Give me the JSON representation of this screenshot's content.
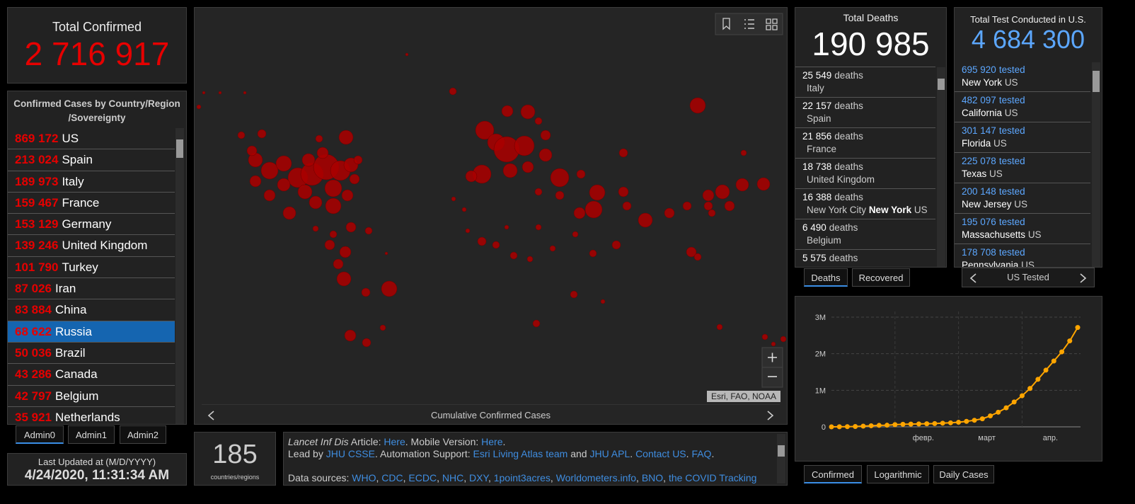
{
  "total_confirmed": {
    "title": "Total Confirmed",
    "value": "2 716 917"
  },
  "country_list": {
    "title_lines": [
      "Confirmed Cases by Country/Region",
      "/Sovereignty"
    ],
    "rows": [
      {
        "count": "869 172",
        "name": "US"
      },
      {
        "count": "213 024",
        "name": "Spain"
      },
      {
        "count": "189 973",
        "name": "Italy"
      },
      {
        "count": "159 467",
        "name": "France"
      },
      {
        "count": "153 129",
        "name": "Germany"
      },
      {
        "count": "139 246",
        "name": "United Kingdom"
      },
      {
        "count": "101 790",
        "name": "Turkey"
      },
      {
        "count": "87 026",
        "name": "Iran"
      },
      {
        "count": "83 884",
        "name": "China"
      },
      {
        "count": "68 622",
        "name": "Russia",
        "selected": true
      },
      {
        "count": "50 036",
        "name": "Brazil"
      },
      {
        "count": "43 286",
        "name": "Canada"
      },
      {
        "count": "42 797",
        "name": "Belgium"
      },
      {
        "count": "35 921",
        "name": "Netherlands"
      }
    ]
  },
  "admin_tabs": [
    "Admin0",
    "Admin1",
    "Admin2"
  ],
  "last_updated": {
    "label": "Last Updated at (M/D/YYYY)",
    "value": "4/24/2020, 11:31:34 AM"
  },
  "map": {
    "caption": "Cumulative Confirmed Cases",
    "attribution": "Esri, FAO, NOAA"
  },
  "countries_count": {
    "value": "185",
    "label": "countries/regions"
  },
  "info": {
    "lines": [
      [
        {
          "text": "Lancet Inf Dis",
          "italic": true
        },
        {
          "text": " Article: "
        },
        {
          "text": "Here",
          "link": true
        },
        {
          "text": ". Mobile Version: "
        },
        {
          "text": "Here",
          "link": true
        },
        {
          "text": "."
        }
      ],
      [
        {
          "text": "Lead by "
        },
        {
          "text": "JHU CSSE",
          "link": true
        },
        {
          "text": ". Automation Support: "
        },
        {
          "text": "Esri Living Atlas team",
          "link": true
        },
        {
          "text": " and "
        },
        {
          "text": "JHU APL",
          "link": true
        },
        {
          "text": ". "
        },
        {
          "text": "Contact US",
          "link": true
        },
        {
          "text": ". "
        },
        {
          "text": "FAQ",
          "link": true
        },
        {
          "text": "."
        }
      ],
      [
        {
          "text": "Data sources: "
        },
        {
          "text": "WHO",
          "link": true
        },
        {
          "text": ", "
        },
        {
          "text": "CDC",
          "link": true
        },
        {
          "text": ", "
        },
        {
          "text": "ECDC",
          "link": true
        },
        {
          "text": ", "
        },
        {
          "text": "NHC",
          "link": true
        },
        {
          "text": ", "
        },
        {
          "text": "DXY",
          "link": true
        },
        {
          "text": ", "
        },
        {
          "text": "1point3acres",
          "link": true
        },
        {
          "text": ", "
        },
        {
          "text": "Worldometers.info",
          "link": true
        },
        {
          "text": ", "
        },
        {
          "text": "BNO",
          "link": true
        },
        {
          "text": ", "
        },
        {
          "text": "the COVID Tracking",
          "link": true
        }
      ]
    ]
  },
  "deaths": {
    "title": "Total Deaths",
    "value": "190 985",
    "rows": [
      {
        "count": "25 549",
        "unit": "deaths",
        "place": "Italy"
      },
      {
        "count": "22 157",
        "unit": "deaths",
        "place": "Spain"
      },
      {
        "count": "21 856",
        "unit": "deaths",
        "place": "France"
      },
      {
        "count": "18 738",
        "unit": "deaths",
        "place": "United Kingdom"
      },
      {
        "count": "16 388",
        "unit": "deaths",
        "place": "New York City",
        "region": "New York",
        "country": "US"
      },
      {
        "count": "6 490",
        "unit": "deaths",
        "place": "Belgium"
      },
      {
        "count": "5 575",
        "unit": "deaths"
      }
    ],
    "tabs": [
      "Deaths",
      "Recovered"
    ]
  },
  "tests": {
    "title": "Total Test Conducted in U.S.",
    "value": "4 684 300",
    "rows": [
      {
        "count": "695 920",
        "unit": "tested",
        "state": "New York",
        "country": "US"
      },
      {
        "count": "482 097",
        "unit": "tested",
        "state": "California",
        "country": "US"
      },
      {
        "count": "301 147",
        "unit": "tested",
        "state": "Florida",
        "country": "US"
      },
      {
        "count": "225 078",
        "unit": "tested",
        "state": "Texas",
        "country": "US"
      },
      {
        "count": "200 148",
        "unit": "tested",
        "state": "New Jersey",
        "country": "US"
      },
      {
        "count": "195 076",
        "unit": "tested",
        "state": "Massachusetts",
        "country": "US"
      },
      {
        "count": "178 708",
        "unit": "tested",
        "state": "Pennsylvania",
        "country": "US"
      }
    ],
    "footer": "US Tested"
  },
  "chart_data": {
    "type": "line",
    "categories": [
      null,
      null,
      null,
      null,
      null,
      null,
      null,
      null,
      "февр.",
      null,
      null,
      null,
      null,
      null,
      null,
      null,
      "март",
      null,
      null,
      null,
      null,
      null,
      null,
      null,
      "апр.",
      null,
      null,
      null,
      null,
      null,
      null,
      null
    ],
    "values": [
      555,
      2000,
      6000,
      10000,
      20000,
      30000,
      40000,
      45000,
      60000,
      70000,
      75000,
      80000,
      85000,
      90000,
      100000,
      110000,
      125000,
      150000,
      180000,
      220000,
      300000,
      400000,
      520000,
      680000,
      850000,
      1050000,
      1300000,
      1550000,
      1800000,
      2050000,
      2350000,
      2716917
    ],
    "color": "#ffa500",
    "ylim": [
      0,
      3000000
    ],
    "yticks": [
      0,
      {
        "value": 1000000,
        "label": "1M"
      },
      {
        "value": 2000000,
        "label": "2M"
      },
      {
        "value": 3000000,
        "label": "3M"
      }
    ],
    "grid": true
  },
  "chart_tabs": [
    "Confirmed",
    "Logarithmic",
    "Daily Cases"
  ]
}
